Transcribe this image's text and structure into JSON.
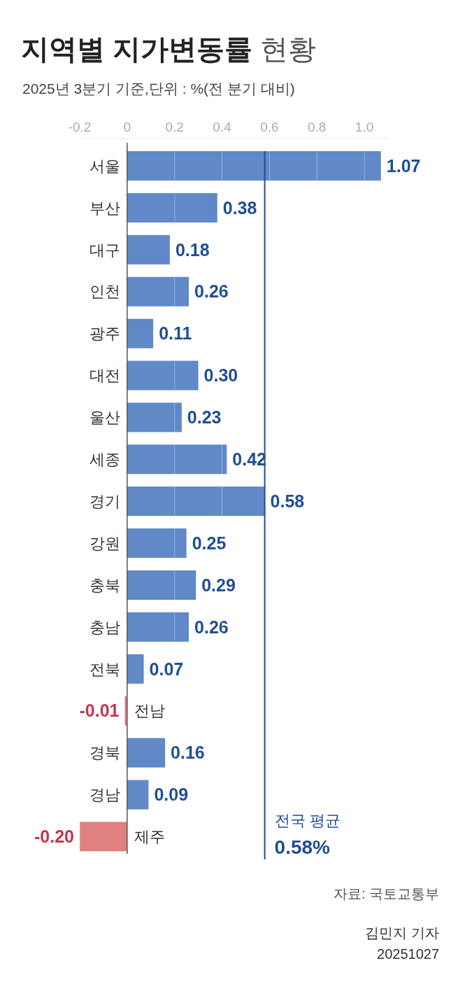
{
  "chart_data": {
    "type": "bar",
    "orientation": "horizontal",
    "title": "지역별 지가변동률 현황",
    "subtitle": "2025년 3분기 기준,단위 : %(전 분기 대비)",
    "categories": [
      "서울",
      "부산",
      "대구",
      "인천",
      "광주",
      "대전",
      "울산",
      "세종",
      "경기",
      "강원",
      "충북",
      "충남",
      "전북",
      "전남",
      "경북",
      "경남",
      "제주"
    ],
    "values": [
      1.07,
      0.38,
      0.18,
      0.26,
      0.11,
      0.3,
      0.23,
      0.42,
      0.58,
      0.25,
      0.29,
      0.26,
      0.07,
      -0.01,
      0.16,
      0.09,
      -0.2
    ],
    "colors": [
      "#6189c8",
      "#6189c8",
      "#6189c8",
      "#6189c8",
      "#6189c8",
      "#6189c8",
      "#6189c8",
      "#6189c8",
      "#6189c8",
      "#6189c8",
      "#6189c8",
      "#6189c8",
      "#6189c8",
      "#e08080",
      "#6189c8",
      "#6189c8",
      "#e08080"
    ],
    "value_labels": [
      "1.07",
      "0.38",
      "0.18",
      "0.26",
      "0.11",
      "0.30",
      "0.23",
      "0.42",
      "0.58",
      "0.25",
      "0.29",
      "0.26",
      "0.07",
      "-0.01",
      "0.16",
      "0.09",
      "-0.20"
    ],
    "xlim": [
      -0.2,
      1.1
    ],
    "xticks": [
      -0.2,
      0,
      0.2,
      0.4,
      0.6,
      0.8,
      {
        "value": 1,
        "label": "1.0"
      }
    ],
    "grid": "x",
    "ref_lines": [
      {
        "axis": "x",
        "value": 0.58,
        "label": "전국 평균\n0.58%",
        "color": "#1f4e96"
      }
    ],
    "annotations": [
      "자료: 국토교통부",
      "김민지 기자",
      "20251027"
    ]
  }
}
